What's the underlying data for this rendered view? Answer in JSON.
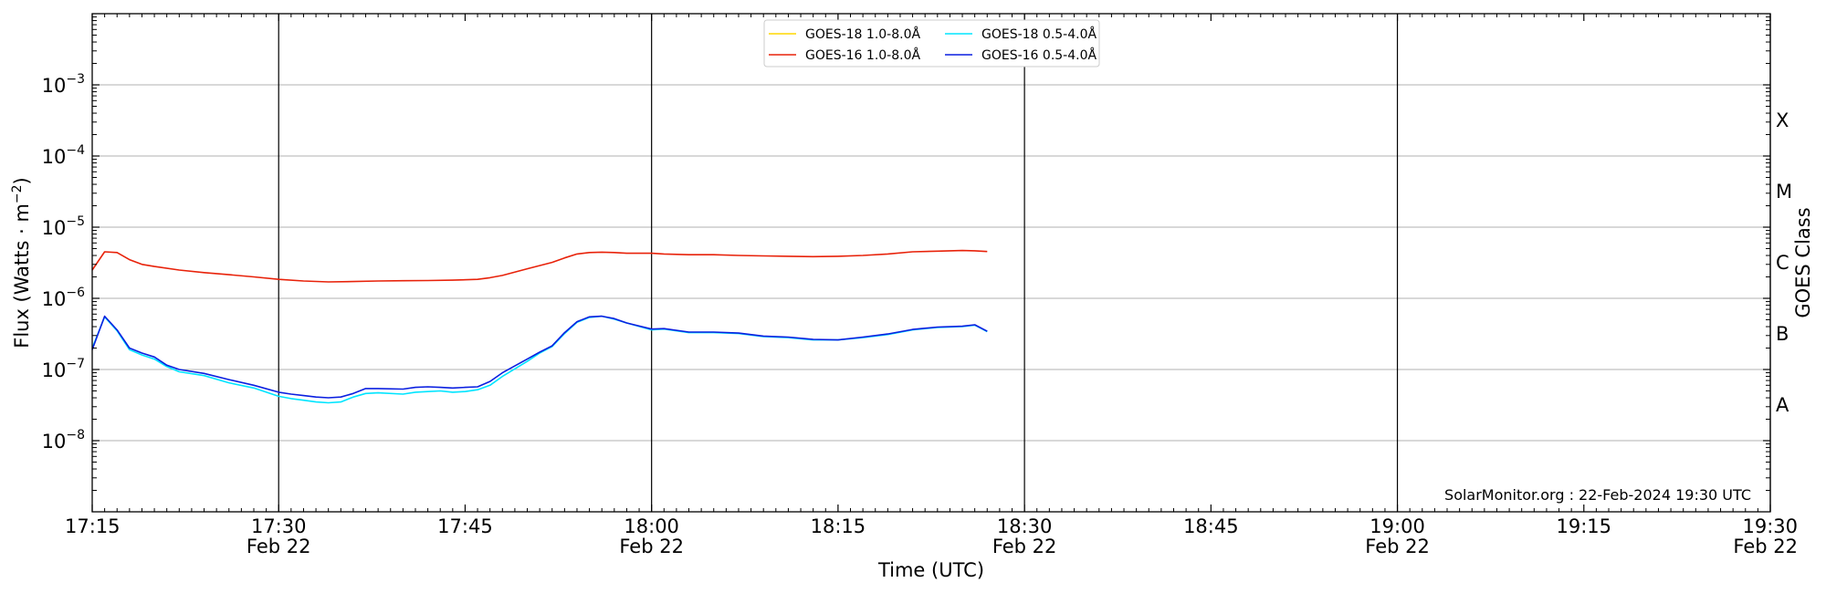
{
  "chart_data": {
    "type": "line",
    "xlabel": "Time (UTC)",
    "ylabel_pre": "Flux (Watts · m",
    "ylabel_sup": "−2",
    "ylabel_post": ")",
    "right_label": "GOES Class",
    "y_scale": "log",
    "ylim": [
      1e-09,
      0.01
    ],
    "xlim": [
      "17:15",
      "19:30"
    ],
    "grid": "horizontal gridlines at decades; vertical lines at day-labelled ticks",
    "legend_position": "top-center",
    "watermark": "SolarMonitor.org : 22-Feb-2024 19:30 UTC",
    "x_ticks": [
      {
        "time": "17:15",
        "date": ""
      },
      {
        "time": "17:30",
        "date": "Feb 22"
      },
      {
        "time": "17:45",
        "date": ""
      },
      {
        "time": "18:00",
        "date": "Feb 22"
      },
      {
        "time": "18:15",
        "date": ""
      },
      {
        "time": "18:30",
        "date": "Feb 22"
      },
      {
        "time": "18:45",
        "date": ""
      },
      {
        "time": "19:00",
        "date": "Feb 22"
      },
      {
        "time": "19:15",
        "date": ""
      },
      {
        "time": "19:30",
        "date": "Feb 22"
      }
    ],
    "y_ticks": [
      {
        "value": 1e-08,
        "base": "10",
        "exp": "−8"
      },
      {
        "value": 1e-07,
        "base": "10",
        "exp": "−7"
      },
      {
        "value": 1e-06,
        "base": "10",
        "exp": "−6"
      },
      {
        "value": 1e-05,
        "base": "10",
        "exp": "−5"
      },
      {
        "value": 0.0001,
        "base": "10",
        "exp": "−4"
      },
      {
        "value": 0.001,
        "base": "10",
        "exp": "−3"
      }
    ],
    "goes_classes": [
      {
        "label": "A",
        "value": 3.16e-08
      },
      {
        "label": "B",
        "value": 3.16e-07
      },
      {
        "label": "C",
        "value": 3.16e-06
      },
      {
        "label": "M",
        "value": 3.16e-05
      },
      {
        "label": "X",
        "value": 0.000316
      }
    ],
    "series": [
      {
        "name": "GOES-18 1.0-8.0Å",
        "color": "#ffd700",
        "x": [],
        "y": []
      },
      {
        "name": "GOES-16 1.0-8.0Å",
        "color": "#e8220a",
        "x": [
          "17:15",
          "17:16",
          "17:17",
          "17:18",
          "17:19",
          "17:20",
          "17:22",
          "17:24",
          "17:26",
          "17:28",
          "17:30",
          "17:32",
          "17:34",
          "17:36",
          "17:38",
          "17:40",
          "17:42",
          "17:44",
          "17:46",
          "17:47",
          "17:48",
          "17:50",
          "17:52",
          "17:53",
          "17:54",
          "17:55",
          "17:56",
          "17:57",
          "17:58",
          "18:00",
          "18:01",
          "18:03",
          "18:05",
          "18:07",
          "18:09",
          "18:11",
          "18:13",
          "18:15",
          "18:17",
          "18:19",
          "18:21",
          "18:23",
          "18:25",
          "18:26",
          "18:27"
        ],
        "y": [
          2.5e-06,
          4.5e-06,
          4.4e-06,
          3.5e-06,
          3e-06,
          2.8e-06,
          2.5e-06,
          2.3e-06,
          2.15e-06,
          2e-06,
          1.85e-06,
          1.75e-06,
          1.7e-06,
          1.72e-06,
          1.75e-06,
          1.77e-06,
          1.78e-06,
          1.8e-06,
          1.85e-06,
          1.95e-06,
          2.1e-06,
          2.6e-06,
          3.2e-06,
          3.7e-06,
          4.2e-06,
          4.4e-06,
          4.45e-06,
          4.4e-06,
          4.3e-06,
          4.3e-06,
          4.2e-06,
          4.1e-06,
          4.1e-06,
          4e-06,
          3.95e-06,
          3.9e-06,
          3.85e-06,
          3.9e-06,
          4e-06,
          4.2e-06,
          4.5e-06,
          4.6e-06,
          4.7e-06,
          4.65e-06,
          4.55e-06
        ]
      },
      {
        "name": "GOES-18 0.5-4.0Å",
        "color": "#00e5ff",
        "x": [
          "17:15",
          "17:16",
          "17:17",
          "17:18",
          "17:19",
          "17:20",
          "17:21",
          "17:22",
          "17:24",
          "17:26",
          "17:28",
          "17:30",
          "17:31",
          "17:32",
          "17:33",
          "17:34",
          "17:35",
          "17:36",
          "17:37",
          "17:38",
          "17:40",
          "17:41",
          "17:42",
          "17:43",
          "17:44",
          "17:45",
          "17:46",
          "17:47",
          "17:48",
          "17:50",
          "17:51",
          "17:52",
          "17:53",
          "17:54",
          "17:55",
          "17:56",
          "17:57",
          "17:58",
          "18:00",
          "18:01",
          "18:03",
          "18:05",
          "18:07",
          "18:09",
          "18:11",
          "18:13",
          "18:15",
          "18:17",
          "18:19",
          "18:21",
          "18:23",
          "18:25",
          "18:26",
          "18:27"
        ],
        "y": [
          2e-07,
          5.5e-07,
          3.5e-07,
          1.9e-07,
          1.6e-07,
          1.4e-07,
          1.1e-07,
          9.3e-08,
          8.2e-08,
          6.5e-08,
          5.5e-08,
          4.2e-08,
          3.9e-08,
          3.7e-08,
          3.5e-08,
          3.4e-08,
          3.5e-08,
          4.1e-08,
          4.6e-08,
          4.7e-08,
          4.5e-08,
          4.8e-08,
          4.9e-08,
          5e-08,
          4.8e-08,
          4.9e-08,
          5.2e-08,
          6e-08,
          8e-08,
          1.3e-07,
          1.7e-07,
          2.1e-07,
          3.2e-07,
          4.6e-07,
          5.4e-07,
          5.6e-07,
          5.1e-07,
          4.5e-07,
          3.6e-07,
          3.7e-07,
          3.3e-07,
          3.3e-07,
          3.2e-07,
          2.9e-07,
          2.8e-07,
          2.6e-07,
          2.6e-07,
          2.8e-07,
          3.1e-07,
          3.6e-07,
          3.9e-07,
          4e-07,
          4.2e-07,
          3.4e-07
        ]
      },
      {
        "name": "GOES-16 0.5-4.0Å",
        "color": "#0a1fe0",
        "x": [
          "17:15",
          "17:16",
          "17:17",
          "17:18",
          "17:19",
          "17:20",
          "17:21",
          "17:22",
          "17:24",
          "17:26",
          "17:28",
          "17:30",
          "17:31",
          "17:32",
          "17:33",
          "17:34",
          "17:35",
          "17:36",
          "17:37",
          "17:38",
          "17:40",
          "17:41",
          "17:42",
          "17:43",
          "17:44",
          "17:45",
          "17:46",
          "17:47",
          "17:48",
          "17:50",
          "17:51",
          "17:52",
          "17:53",
          "17:54",
          "17:55",
          "17:56",
          "17:57",
          "17:58",
          "18:00",
          "18:01",
          "18:03",
          "18:05",
          "18:07",
          "18:09",
          "18:11",
          "18:13",
          "18:15",
          "18:17",
          "18:19",
          "18:21",
          "18:23",
          "18:25",
          "18:26",
          "18:27"
        ],
        "y": [
          1.9e-07,
          5.6e-07,
          3.6e-07,
          2e-07,
          1.7e-07,
          1.5e-07,
          1.15e-07,
          1e-07,
          8.8e-08,
          7.2e-08,
          6e-08,
          4.8e-08,
          4.5e-08,
          4.3e-08,
          4.1e-08,
          4e-08,
          4.1e-08,
          4.6e-08,
          5.4e-08,
          5.4e-08,
          5.3e-08,
          5.6e-08,
          5.7e-08,
          5.6e-08,
          5.5e-08,
          5.6e-08,
          5.7e-08,
          6.8e-08,
          9e-08,
          1.4e-07,
          1.75e-07,
          2.15e-07,
          3.3e-07,
          4.7e-07,
          5.5e-07,
          5.6e-07,
          5.2e-07,
          4.5e-07,
          3.7e-07,
          3.75e-07,
          3.35e-07,
          3.35e-07,
          3.25e-07,
          2.95e-07,
          2.85e-07,
          2.65e-07,
          2.6e-07,
          2.85e-07,
          3.15e-07,
          3.65e-07,
          3.95e-07,
          4.05e-07,
          4.25e-07,
          3.45e-07
        ]
      }
    ]
  }
}
